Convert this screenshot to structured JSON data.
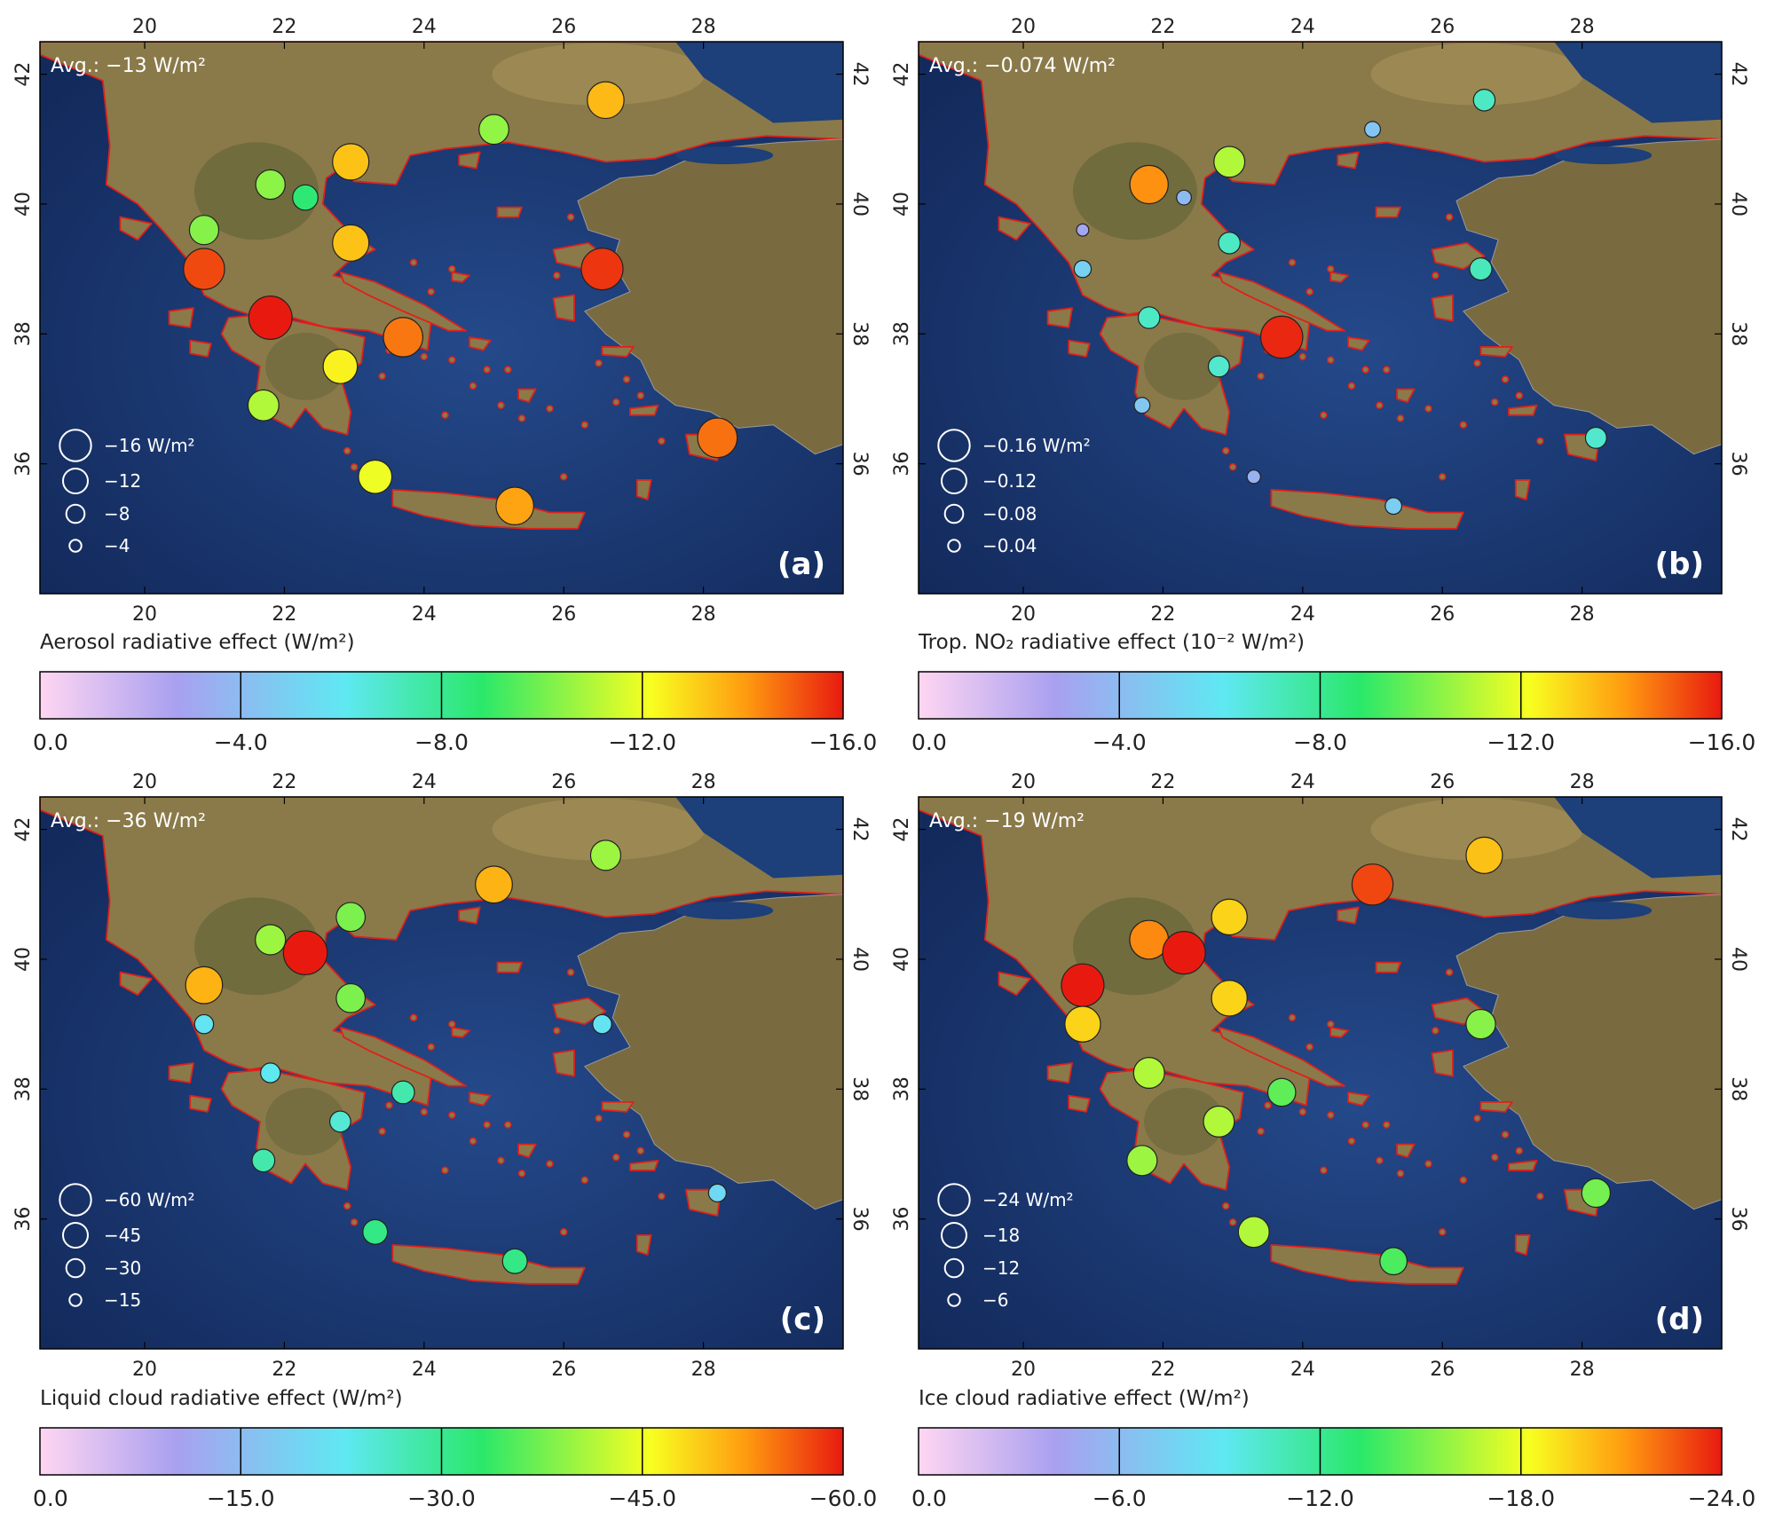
{
  "panels": [
    {
      "letter": "(a)",
      "avg_text": "Avg.: −13 W/m²",
      "cbar_title": "Aerosol radiative effect (W/m²)",
      "cbar_max": 16,
      "cbar_ticks": [
        "0.0",
        "−4.0",
        "−8.0",
        "−12.0",
        "−16.0"
      ],
      "size_legend": [
        "−16 W/m²",
        "−12",
        "−8",
        "−4"
      ],
      "size_legend_values": [
        16,
        12,
        8,
        4
      ],
      "stations": [
        {
          "lon": 26.6,
          "lat": 41.6,
          "value": -13.5
        },
        {
          "lon": 25.0,
          "lat": 41.15,
          "value": -10.5
        },
        {
          "lon": 22.95,
          "lat": 40.65,
          "value": -13.3
        },
        {
          "lon": 21.8,
          "lat": 40.3,
          "value": -10.4
        },
        {
          "lon": 22.3,
          "lat": 40.1,
          "value": -8.6
        },
        {
          "lon": 20.85,
          "lat": 39.6,
          "value": -10.3
        },
        {
          "lon": 22.95,
          "lat": 39.4,
          "value": -13.3
        },
        {
          "lon": 20.85,
          "lat": 39.0,
          "value": -15.3
        },
        {
          "lon": 26.55,
          "lat": 39.0,
          "value": -15.6
        },
        {
          "lon": 21.8,
          "lat": 38.25,
          "value": -16.3
        },
        {
          "lon": 23.7,
          "lat": 37.95,
          "value": -14.6
        },
        {
          "lon": 22.8,
          "lat": 37.5,
          "value": -12.4
        },
        {
          "lon": 21.7,
          "lat": 36.9,
          "value": -11.0
        },
        {
          "lon": 28.2,
          "lat": 36.4,
          "value": -14.7
        },
        {
          "lon": 23.3,
          "lat": 35.8,
          "value": -12.0
        },
        {
          "lon": 25.3,
          "lat": 35.35,
          "value": -13.9
        }
      ]
    },
    {
      "letter": "(b)",
      "avg_text": "Avg.: −0.074 W/m²",
      "cbar_title": "Trop. NO₂ radiative effect (10⁻² W/m²)",
      "cbar_max": 16,
      "cbar_ticks": [
        "0.0",
        "−4.0",
        "−8.0",
        "−12.0",
        "−16.0"
      ],
      "size_legend": [
        "−0.16 W/m²",
        "−0.12",
        "−0.08",
        "−0.04"
      ],
      "size_legend_values": [
        16,
        12,
        8,
        4
      ],
      "stations": [
        {
          "lon": 26.6,
          "lat": 41.6,
          "value": -7.0
        },
        {
          "lon": 25.0,
          "lat": 41.15,
          "value": -4.5
        },
        {
          "lon": 22.95,
          "lat": 40.65,
          "value": -11.0
        },
        {
          "lon": 21.8,
          "lat": 40.3,
          "value": -14.2
        },
        {
          "lon": 22.3,
          "lat": 40.1,
          "value": -4.0
        },
        {
          "lon": 20.85,
          "lat": 39.6,
          "value": -3.0
        },
        {
          "lon": 22.95,
          "lat": 39.4,
          "value": -7.0
        },
        {
          "lon": 20.85,
          "lat": 39.0,
          "value": -5.0
        },
        {
          "lon": 26.55,
          "lat": 39.0,
          "value": -7.2
        },
        {
          "lon": 21.8,
          "lat": 38.25,
          "value": -7.0
        },
        {
          "lon": 23.7,
          "lat": 37.95,
          "value": -15.8
        },
        {
          "lon": 22.8,
          "lat": 37.5,
          "value": -6.8
        },
        {
          "lon": 21.7,
          "lat": 36.9,
          "value": -4.5
        },
        {
          "lon": 28.2,
          "lat": 36.4,
          "value": -6.8
        },
        {
          "lon": 23.3,
          "lat": 35.8,
          "value": -3.5
        },
        {
          "lon": 25.3,
          "lat": 35.35,
          "value": -4.8
        }
      ]
    },
    {
      "letter": "(c)",
      "avg_text": "Avg.: −36 W/m²",
      "cbar_title": "Liquid cloud radiative effect (W/m²)",
      "cbar_max": 60,
      "cbar_ticks": [
        "0.0",
        "−15.0",
        "−30.0",
        "−45.0",
        "−60.0"
      ],
      "size_legend": [
        "−60 W/m²",
        "−45",
        "−30",
        "−15"
      ],
      "size_legend_values": [
        60,
        45,
        30,
        15
      ],
      "stations": [
        {
          "lon": 26.6,
          "lat": 41.6,
          "value": -40.0
        },
        {
          "lon": 25.0,
          "lat": 41.15,
          "value": -51.0
        },
        {
          "lon": 22.95,
          "lat": 40.65,
          "value": -38.0
        },
        {
          "lon": 21.8,
          "lat": 40.3,
          "value": -40.0
        },
        {
          "lon": 22.3,
          "lat": 40.1,
          "value": -62.0
        },
        {
          "lon": 20.85,
          "lat": 39.6,
          "value": -51.0
        },
        {
          "lon": 22.95,
          "lat": 39.4,
          "value": -38.0
        },
        {
          "lon": 20.85,
          "lat": 39.0,
          "value": -22.0
        },
        {
          "lon": 26.55,
          "lat": 39.0,
          "value": -22.0
        },
        {
          "lon": 21.8,
          "lat": 38.25,
          "value": -23.0
        },
        {
          "lon": 23.7,
          "lat": 37.95,
          "value": -28.0
        },
        {
          "lon": 22.8,
          "lat": 37.5,
          "value": -25.0
        },
        {
          "lon": 21.7,
          "lat": 36.9,
          "value": -28.0
        },
        {
          "lon": 28.2,
          "lat": 36.4,
          "value": -20.0
        },
        {
          "lon": 23.3,
          "lat": 35.8,
          "value": -31.0
        },
        {
          "lon": 25.3,
          "lat": 35.35,
          "value": -31.0
        }
      ]
    },
    {
      "letter": "(d)",
      "avg_text": "Avg.: −19 W/m²",
      "cbar_title": "Ice cloud radiative effect (W/m²)",
      "cbar_max": 24,
      "cbar_ticks": [
        "0.0",
        "−6.0",
        "−12.0",
        "−18.0",
        "−24.0"
      ],
      "size_legend": [
        "−24 W/m²",
        "−18",
        "−12",
        "−6"
      ],
      "size_legend_values": [
        24,
        18,
        12,
        6
      ],
      "stations": [
        {
          "lon": 26.6,
          "lat": 41.6,
          "value": -20.0
        },
        {
          "lon": 25.0,
          "lat": 41.15,
          "value": -23.0
        },
        {
          "lon": 22.95,
          "lat": 40.65,
          "value": -19.5
        },
        {
          "lon": 21.8,
          "lat": 40.3,
          "value": -21.5
        },
        {
          "lon": 22.3,
          "lat": 40.1,
          "value": -24.0
        },
        {
          "lon": 20.85,
          "lat": 39.6,
          "value": -24.0
        },
        {
          "lon": 22.95,
          "lat": 39.4,
          "value": -19.5
        },
        {
          "lon": 20.85,
          "lat": 39.0,
          "value": -19.5
        },
        {
          "lon": 26.55,
          "lat": 39.0,
          "value": -15.5
        },
        {
          "lon": 21.8,
          "lat": 38.25,
          "value": -16.5
        },
        {
          "lon": 23.7,
          "lat": 37.95,
          "value": -14.5
        },
        {
          "lon": 22.8,
          "lat": 37.5,
          "value": -16.5
        },
        {
          "lon": 21.7,
          "lat": 36.9,
          "value": -16.0
        },
        {
          "lon": 28.2,
          "lat": 36.4,
          "value": -15.0
        },
        {
          "lon": 23.3,
          "lat": 35.8,
          "value": -16.5
        },
        {
          "lon": 25.3,
          "lat": 35.35,
          "value": -14.0
        }
      ]
    }
  ],
  "map_axes": {
    "lon_ticks": [
      "20",
      "22",
      "24",
      "26",
      "28"
    ],
    "lat_ticks": [
      "42",
      "40",
      "38",
      "36"
    ],
    "lon_range": [
      18.5,
      30.0
    ],
    "lat_range": [
      34.0,
      42.5
    ]
  },
  "colors": {
    "sea": "#1b3a72",
    "land": "#8a7a4a",
    "greece_outline": "#e0201a",
    "colormap": [
      "#ffd6f2",
      "#a9a0f0",
      "#5fe8f2",
      "#2ae86a",
      "#f8ff20",
      "#ff9a10",
      "#e81a10"
    ]
  },
  "chart_data": [
    {
      "type": "scatter",
      "title": "Aerosol radiative effect (W/m²)",
      "avg": "−13 W/m²",
      "xlim": [
        18.5,
        30.0
      ],
      "ylim": [
        34.0,
        42.5
      ]
    },
    {
      "type": "scatter",
      "title": "Trop. NO₂ radiative effect (10⁻² W/m²)",
      "avg": "−0.074 W/m²",
      "xlim": [
        18.5,
        30.0
      ],
      "ylim": [
        34.0,
        42.5
      ]
    },
    {
      "type": "scatter",
      "title": "Liquid cloud radiative effect (W/m²)",
      "avg": "−36 W/m²",
      "xlim": [
        18.5,
        30.0
      ],
      "ylim": [
        34.0,
        42.5
      ]
    },
    {
      "type": "scatter",
      "title": "Ice cloud radiative effect (W/m²)",
      "avg": "−19 W/m²",
      "xlim": [
        18.5,
        30.0
      ],
      "ylim": [
        34.0,
        42.5
      ]
    }
  ]
}
